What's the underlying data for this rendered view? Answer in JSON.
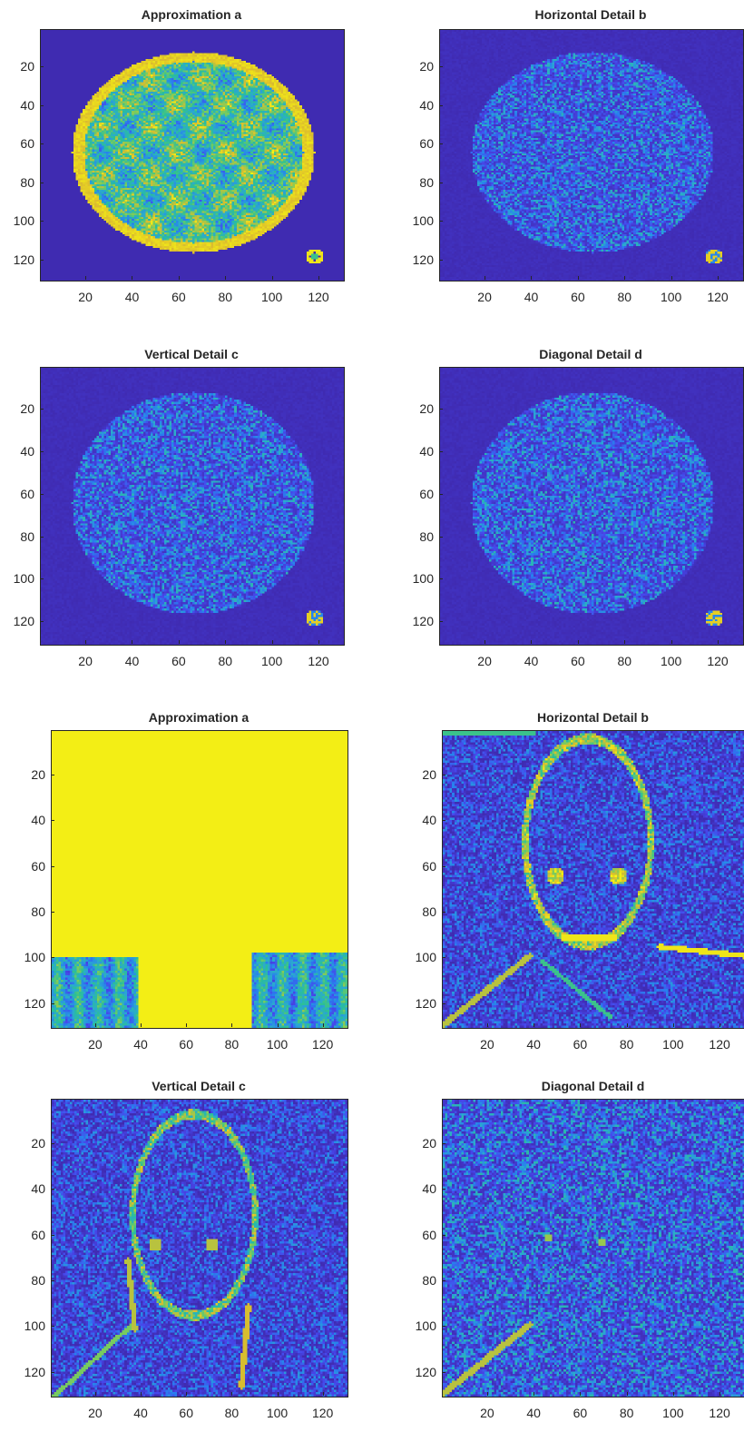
{
  "figures": [
    {
      "name": "figure-sun",
      "panels": [
        {
          "id": "sun-a",
          "title": "Approximation a",
          "kind": "sun-approx"
        },
        {
          "id": "sun-b",
          "title": "Horizontal Detail b",
          "kind": "sun-detail"
        },
        {
          "id": "sun-c",
          "title": "Vertical Detail c",
          "kind": "sun-detail"
        },
        {
          "id": "sun-d",
          "title": "Diagonal Detail d",
          "kind": "sun-detail"
        }
      ]
    },
    {
      "name": "figure-portrait",
      "panels": [
        {
          "id": "face-a",
          "title": "Approximation a",
          "kind": "face-approx"
        },
        {
          "id": "face-b",
          "title": "Horizontal Detail b",
          "kind": "face-h"
        },
        {
          "id": "face-c",
          "title": "Vertical Detail c",
          "kind": "face-v"
        },
        {
          "id": "face-d",
          "title": "Diagonal Detail d",
          "kind": "face-d"
        }
      ]
    }
  ],
  "axis": {
    "xticks": [
      "20",
      "40",
      "60",
      "80",
      "100",
      "120"
    ],
    "yticks": [
      "20",
      "40",
      "60",
      "80",
      "100",
      "120"
    ],
    "tick_values": [
      20,
      40,
      60,
      80,
      100,
      120
    ],
    "range": [
      0.5,
      130.5
    ]
  },
  "colormap": "parula",
  "colors": {
    "low": "#3e26a8",
    "high": "#f9fb0e",
    "mid": "#2ab0c0"
  }
}
